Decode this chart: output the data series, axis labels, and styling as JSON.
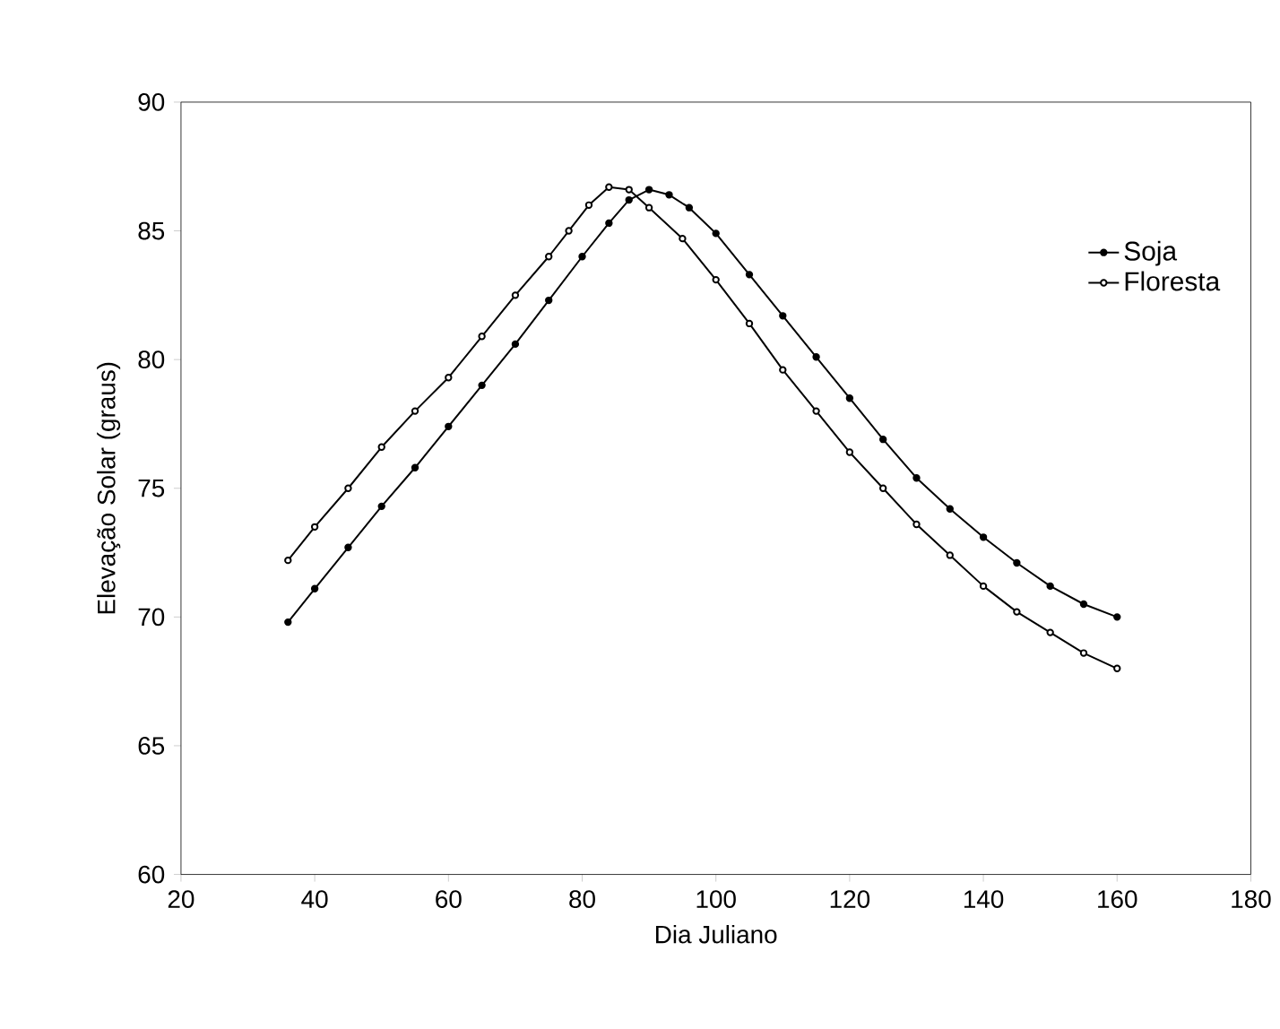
{
  "chart_data": {
    "type": "line",
    "xlabel": "Dia Juliano",
    "ylabel": "Elevação Solar (graus)",
    "xlim": [
      20,
      180
    ],
    "xticks": [
      20,
      40,
      60,
      80,
      100,
      120,
      140,
      160,
      180
    ],
    "ylim": [
      60,
      90
    ],
    "yticks": [
      60,
      65,
      70,
      75,
      80,
      85,
      90
    ],
    "legend": "top right",
    "marker": "circle",
    "grid": false,
    "x": [
      36,
      40,
      45,
      50,
      55,
      60,
      65,
      70,
      75,
      80,
      84,
      87,
      90,
      93,
      96,
      100,
      105,
      110,
      115,
      120,
      125,
      130,
      135,
      140,
      145,
      150,
      155,
      160
    ],
    "series": [
      {
        "name": "Soja",
        "color": "#000000",
        "values": [
          69.8,
          71.1,
          72.7,
          74.3,
          75.8,
          77.4,
          79.0,
          80.6,
          82.3,
          84.0,
          85.3,
          86.2,
          86.6,
          86.4,
          85.9,
          84.9,
          83.3,
          81.7,
          80.1,
          78.5,
          76.9,
          75.4,
          74.2,
          73.1,
          72.1,
          71.2,
          70.5,
          70.0
        ]
      },
      {
        "name": "Floresta",
        "color": "#000000",
        "x": [
          36,
          40,
          45,
          50,
          55,
          60,
          65,
          70,
          75,
          78,
          81,
          84,
          87,
          90,
          95,
          100,
          105,
          110,
          115,
          120,
          125,
          130,
          135,
          140,
          145,
          150,
          155,
          160
        ],
        "values": [
          72.2,
          73.5,
          75.0,
          76.6,
          78.0,
          79.3,
          80.9,
          82.5,
          84.0,
          85.0,
          86.0,
          86.7,
          86.6,
          85.9,
          84.7,
          83.1,
          81.4,
          79.6,
          78.0,
          76.4,
          75.0,
          73.6,
          72.4,
          71.2,
          70.2,
          69.4,
          68.6,
          68.0
        ]
      }
    ]
  }
}
